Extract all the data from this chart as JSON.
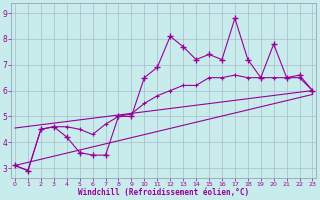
{
  "background_color": "#c8ecec",
  "line_color": "#990099",
  "grid_color": "#aabbcc",
  "xlabel": "Windchill (Refroidissement éolien,°C)",
  "x": [
    0,
    1,
    2,
    3,
    4,
    5,
    6,
    7,
    8,
    9,
    10,
    11,
    12,
    13,
    14,
    15,
    16,
    17,
    18,
    19,
    20,
    21,
    22,
    23
  ],
  "y_jagged": [
    3.1,
    2.9,
    4.5,
    4.6,
    4.2,
    3.6,
    3.5,
    3.5,
    5.0,
    5.0,
    6.5,
    6.9,
    8.1,
    7.7,
    7.2,
    7.4,
    7.2,
    8.8,
    7.2,
    6.5,
    7.8,
    6.5,
    6.6,
    6.0
  ],
  "y_smooth": [
    3.1,
    2.9,
    4.5,
    4.6,
    4.6,
    4.5,
    4.3,
    4.7,
    5.0,
    5.1,
    5.5,
    5.8,
    6.0,
    6.2,
    6.2,
    6.5,
    6.5,
    6.6,
    6.5,
    6.5,
    6.5,
    6.5,
    6.5,
    6.0
  ],
  "reg_low": [
    3.1,
    5.85
  ],
  "reg_high": [
    4.55,
    6.0
  ],
  "ylim": [
    2.6,
    9.4
  ],
  "xlim": [
    -0.3,
    23.3
  ],
  "yticks": [
    3,
    4,
    5,
    6,
    7,
    8,
    9
  ],
  "xticks": [
    0,
    1,
    2,
    3,
    4,
    5,
    6,
    7,
    8,
    9,
    10,
    11,
    12,
    13,
    14,
    15,
    16,
    17,
    18,
    19,
    20,
    21,
    22,
    23
  ],
  "figsize": [
    3.2,
    2.0
  ],
  "dpi": 100
}
